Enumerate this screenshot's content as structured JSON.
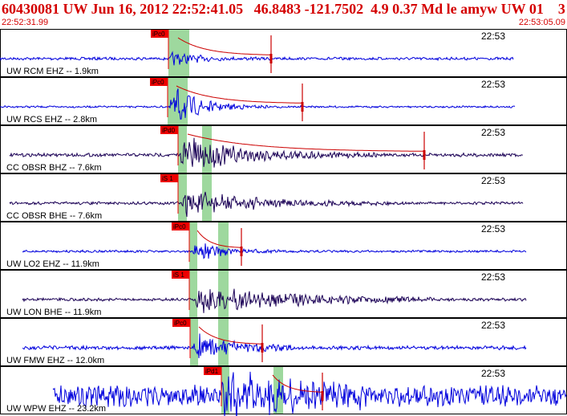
{
  "header": {
    "title": "60430081 UW Jun 16, 2012 22:52:41.05   46.8483 -121.7502  4.9 0.37 Md le amyw UW 01    3",
    "time_start": "22:52:31.99",
    "time_end": "22:53:05.09"
  },
  "colors": {
    "header_text": "#d40000",
    "trace_ehz": "#0000dd",
    "trace_bh": "#1a0055",
    "pick_box": "#ee0000",
    "pick_window": "#9ed89e",
    "coda": "#cc0000"
  },
  "channels": [
    {
      "label": "UW RCM EHZ -- 1.9km",
      "time_label": "22:53",
      "pick": "iPc0",
      "color": "#0000dd",
      "start": 0,
      "end": 640,
      "onset": 211,
      "amp": 8,
      "noise": 1.5,
      "dur": 120,
      "decay": 0.035,
      "coda": true,
      "cstart": 222,
      "cend": 338,
      "tick": 338,
      "win": [
        210,
        224
      ],
      "bar": [
        223,
        236
      ]
    },
    {
      "label": "UW RCS EHZ -- 2.8km",
      "time_label": "22:53",
      "pick": "iPc0",
      "color": "#0000dd",
      "start": 0,
      "end": 642,
      "onset": 211,
      "amp": 24,
      "noise": 1,
      "dur": 150,
      "decay": 0.03,
      "coda": true,
      "cstart": 220,
      "cend": 377,
      "tick": 377,
      "win": [
        209,
        222
      ],
      "bar": [
        221,
        234
      ]
    },
    {
      "label": "CC OBSR BHZ -- 7.6km",
      "time_label": "22:53",
      "pick": "iPd0",
      "color": "#1a0055",
      "start": 12,
      "end": 652,
      "onset": 224,
      "amp": 20,
      "noise": 1.8,
      "dur": 260,
      "decay": 0.014,
      "coda": true,
      "cstart": 234,
      "cend": 529,
      "tick": 529,
      "win": [
        222,
        233
      ],
      "bar": [
        252,
        264
      ]
    },
    {
      "label": "CC OBSR BHE -- 7.6km",
      "time_label": "22:53",
      "pick": "iS 1",
      "color": "#1a0055",
      "start": 12,
      "end": 652,
      "onset": 226,
      "amp": 14,
      "noise": 1.5,
      "dur": 260,
      "decay": 0.012,
      "coda": false,
      "cstart": 0,
      "cend": 0,
      "tick": 0,
      "win": [
        222,
        233
      ],
      "bar": [
        252,
        264
      ]
    },
    {
      "label": "UW LO2 EHZ -- 11.9km",
      "time_label": "22:53",
      "pick": "iPc0",
      "color": "#0000dd",
      "start": 28,
      "end": 656,
      "onset": 240,
      "amp": 11,
      "noise": 1.2,
      "dur": 110,
      "decay": 0.03,
      "coda": true,
      "cstart": 246,
      "cend": 301,
      "tick": 301,
      "win": [
        236,
        246
      ],
      "bar": [
        272,
        285
      ]
    },
    {
      "label": "UW LON BHE -- 11.9km",
      "time_label": "22:53",
      "pick": "iS 1",
      "color": "#1a0055",
      "start": 28,
      "end": 656,
      "onset": 243,
      "amp": 14,
      "noise": 1.5,
      "dur": 300,
      "decay": 0.008,
      "coda": false,
      "cstart": 0,
      "cend": 0,
      "tick": 0,
      "win": [
        236,
        246
      ],
      "bar": [
        272,
        285
      ]
    },
    {
      "label": "UW FMW EHZ -- 12.0km",
      "time_label": "22:53",
      "pick": "iPc0",
      "color": "#0000dd",
      "start": 28,
      "end": 656,
      "onset": 241,
      "amp": 15,
      "noise": 2,
      "dur": 130,
      "decay": 0.022,
      "coda": true,
      "cstart": 248,
      "cend": 327,
      "tick": 327,
      "win": [
        237,
        247
      ],
      "bar": [
        272,
        285
      ]
    },
    {
      "label": "UW WPW EHZ -- 23.2km",
      "time_label": "22:53",
      "pick": "iPd1",
      "color": "#0000dd",
      "start": 66,
      "end": 706,
      "onset": 276,
      "amp": 18,
      "noise": 11,
      "dur": 180,
      "decay": 0.01,
      "coda": true,
      "cstart": 340,
      "cend": 402,
      "tick": 402,
      "win": [
        276,
        286
      ],
      "bar": [
        341,
        353
      ]
    }
  ]
}
